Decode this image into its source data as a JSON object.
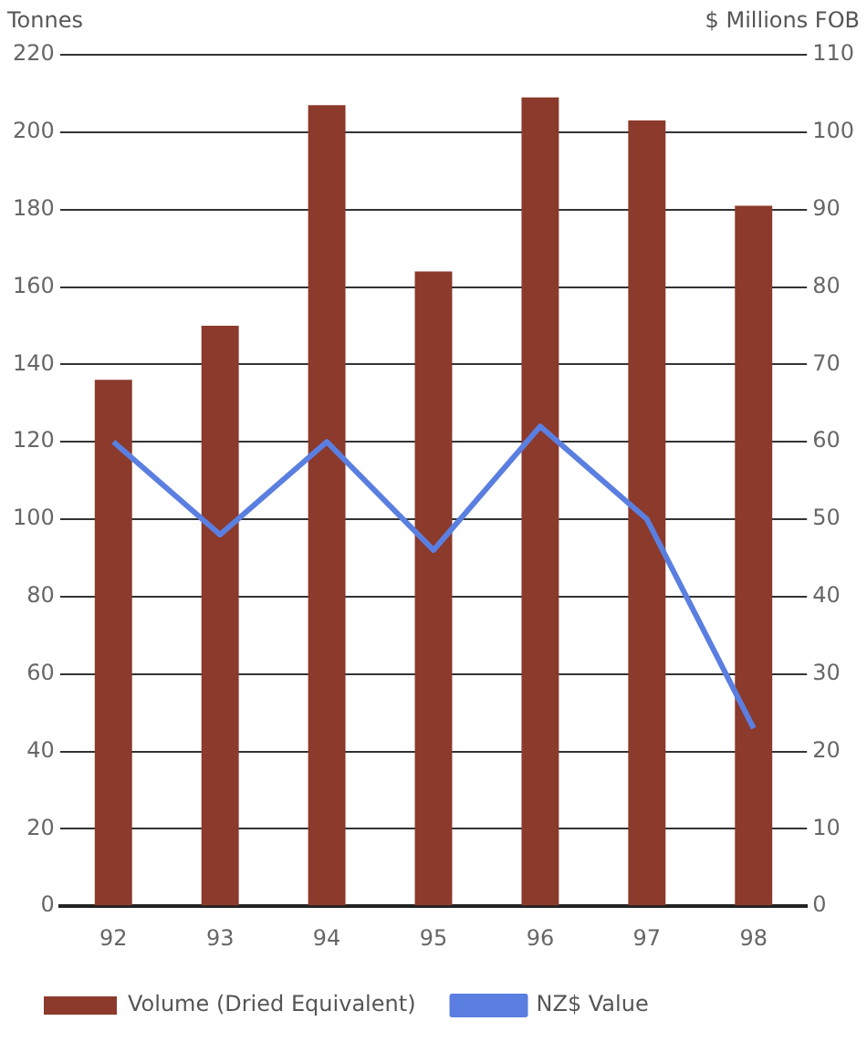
{
  "chart_data": {
    "type": "bar",
    "ylabel": "Tonnes",
    "y2label": "$ Millions FOB",
    "categories": [
      "92",
      "93",
      "94",
      "95",
      "96",
      "97",
      "98"
    ],
    "series": [
      {
        "name": "Volume (Dried Equivalent)",
        "color": "#8b3a2c",
        "values": [
          136,
          150,
          207,
          164,
          209,
          203,
          181
        ]
      },
      {
        "name": "NZ$ Value",
        "type": "line",
        "axis": "y2",
        "color": "#5b7fe0",
        "values": [
          60,
          48,
          60,
          46,
          62,
          50,
          23
        ]
      }
    ],
    "ylim": [
      0,
      220
    ],
    "yticks": [
      0,
      20,
      40,
      60,
      80,
      100,
      120,
      140,
      160,
      180,
      200,
      220
    ],
    "y2lim": [
      0,
      110
    ],
    "y2ticks": [
      0,
      10,
      20,
      30,
      40,
      50,
      60,
      70,
      80,
      90,
      100,
      110
    ],
    "grid": "y",
    "legend": "bottom",
    "marker": "none",
    "line_style": "solid"
  }
}
